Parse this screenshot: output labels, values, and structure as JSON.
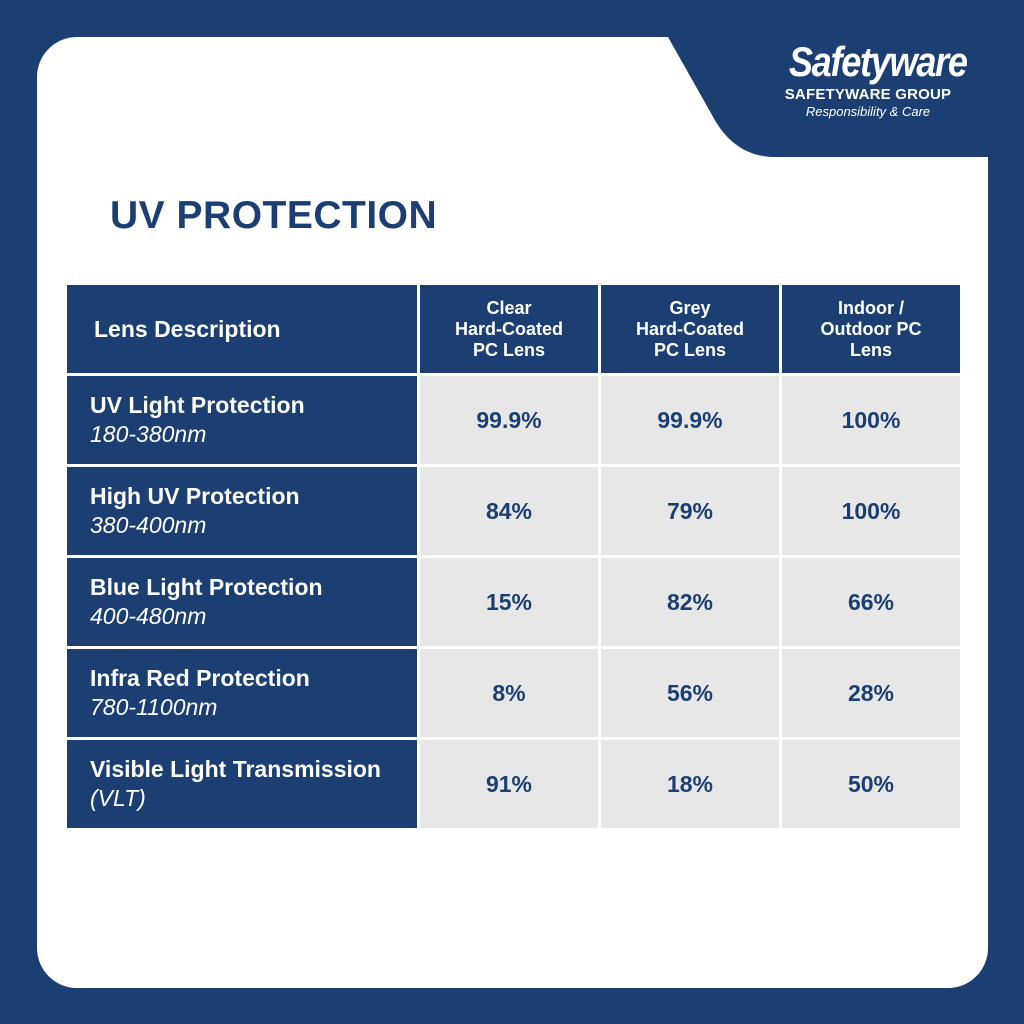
{
  "logo": {
    "wordmark": "Safetyware",
    "group": "SAFETYWARE GROUP",
    "tagline": "Responsibility & Care"
  },
  "title": "UV PROTECTION",
  "table": {
    "header": {
      "first": "Lens Description",
      "columns": [
        [
          "Clear",
          "Hard-Coated",
          "PC Lens"
        ],
        [
          "Grey",
          "Hard-Coated",
          "PC Lens"
        ],
        [
          "Indoor /",
          "Outdoor PC",
          "Lens"
        ]
      ]
    },
    "rows": [
      {
        "name": "UV Light Protection",
        "range": "180-380nm",
        "values": [
          "99.9%",
          "99.9%",
          "100%"
        ]
      },
      {
        "name": "High UV Protection",
        "range": "380-400nm",
        "values": [
          "84%",
          "79%",
          "100%"
        ]
      },
      {
        "name": "Blue Light Protection",
        "range": "400-480nm",
        "values": [
          "15%",
          "82%",
          "66%"
        ]
      },
      {
        "name": "Infra Red Protection",
        "range": "780-1100nm",
        "values": [
          "8%",
          "56%",
          "28%"
        ]
      },
      {
        "name": "Visible Light Transmission",
        "range": "(VLT)",
        "values": [
          "91%",
          "18%",
          "50%"
        ]
      }
    ]
  },
  "colors": {
    "brand": "#1b3f73",
    "cell": "#e7e7e8",
    "background": "#ffffff"
  }
}
